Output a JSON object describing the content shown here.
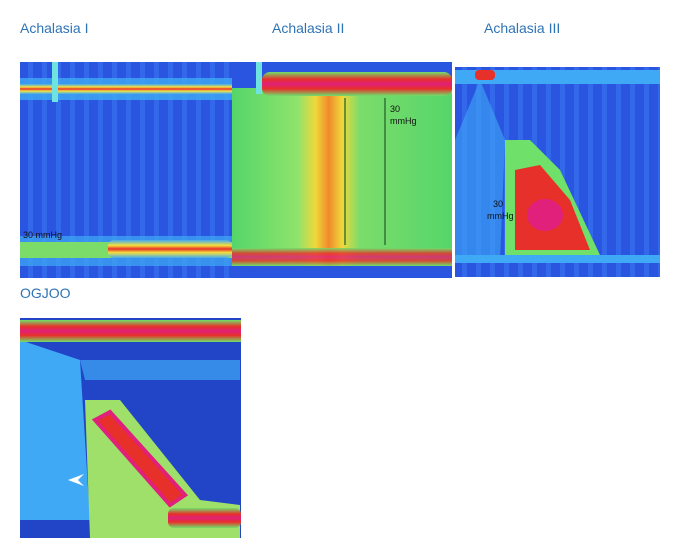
{
  "panels": [
    {
      "title": "Achalasia I",
      "annotation": "30 mmHg"
    },
    {
      "title": "Achalasia II",
      "annotation_lines": [
        "30",
        "mmHg"
      ]
    },
    {
      "title": "Achalasia III",
      "annotation_lines": [
        "30",
        "mmHg"
      ]
    },
    {
      "title": "OGJOO"
    }
  ]
}
